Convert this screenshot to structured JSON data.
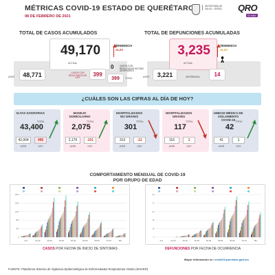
{
  "header": {
    "title": "MÉTRICAS COVID-19 ESTADO DE QUERÉTARO",
    "date": "08 DE FEBRERO DE 2021",
    "gov_text": "SECRETARÍA DE SALUD - SESEQ",
    "logo_main": "QRO",
    "logo_sub": "SI HAY"
  },
  "cases": {
    "title": "TOTAL DE CASOS ACUMULADOS",
    "total": "49,170",
    "total_label": "ACTUAL",
    "trend_label": "TENDENCIA",
    "trend_value": "ALZA",
    "yesterday_label": "AYER",
    "yesterday": "48,771",
    "diff_label": "CASOS CON RESULTADOS DE HOY",
    "diff": "399",
    "prior_label": "CASOS CON RESULTADOS DE DÍAS ANTERIORES",
    "prior": "0",
    "sum_value": "399",
    "sum_label": "TOTAL"
  },
  "deaths": {
    "title": "TOTAL DE DEFUNCIONES ACUMULADAS",
    "total": "3,235",
    "total_label": "ACTUAL",
    "trend_label": "TENDENCIA",
    "trend_value": "ALZA",
    "yesterday_label": "AYER",
    "yesterday": "3,221",
    "diff_label": "DIFERENCIA",
    "diff": "14"
  },
  "banner": {
    "text": "¿CUÁLES SON LAS CIFRAS AL DÍA DE HOY?"
  },
  "metrics": [
    {
      "title": "ALTAS SANITARIAS",
      "total_label": "TOTAL",
      "total": "43,400",
      "yesterday": "42,904",
      "today": "496",
      "yesterday_label": "AYER",
      "today_label": "HOY",
      "trend": "up",
      "today_style": "pink"
    },
    {
      "title": "MANEJO DOMICILIARIO",
      "total_label": "TOTAL",
      "total": "2,075",
      "yesterday": "2,176",
      "today": "-101",
      "yesterday_label": "AYER",
      "today_label": "HOY",
      "trend": "up",
      "today_style": "red"
    },
    {
      "title": "HOSPITALIZADOS NO GRAVES",
      "total_label": "TOTAL",
      "total": "301",
      "yesterday": "313",
      "today": "-12",
      "yesterday_label": "AYER",
      "today_label": "HOY",
      "trend": "down",
      "today_style": "red"
    },
    {
      "title": "HOSPITALIZADOS GRAVES",
      "total_label": "TOTAL",
      "total": "117",
      "yesterday": "116",
      "today": "1",
      "yesterday_label": "AYER",
      "today_label": "HOY",
      "trend": "down",
      "today_style": "red"
    },
    {
      "title": "UNIDAD MÉDICA DE AISLAMIENTO COVID-19",
      "total_label": "TOTAL",
      "total": "42",
      "yesterday": "41",
      "today": "1",
      "yesterday_label": "AYER",
      "today_label": "HOY",
      "trend": "up",
      "today_style": "green"
    }
  ],
  "charts": {
    "title_line1": "COMPORTAMIENTO MENSUAL DE COVID-19",
    "title_line2": "POR GRUPO DE EDAD",
    "left_caption_colored": "CASOS",
    "left_caption_rest": " POR FECHA DE INICIO DE SÍNTOMAS",
    "right_caption_colored": "DEFUNCIONES",
    "right_caption_rest": " POR FECHA DE OCURRENCIA",
    "colors": [
      "#1f4e9a",
      "#c0392b",
      "#7fb04a",
      "#7b4a9a",
      "#2aa7c9",
      "#f08a24",
      "#9fc3e8",
      "#e8a0a8",
      "#c7d98a",
      "#b39ad0",
      "#e74c3c",
      "#5bd6c9"
    ]
  },
  "chart_data": [
    {
      "type": "bar",
      "title": "",
      "categories": [
        "0-9",
        "10-19",
        "20-29",
        "30-39",
        "40-49",
        "50-59",
        "60-69",
        "70-79",
        "80+"
      ],
      "series": [
        {
          "values": [
            20,
            80,
            230,
            260,
            220,
            150,
            90,
            50,
            25
          ]
        },
        {
          "values": [
            30,
            110,
            350,
            380,
            320,
            230,
            140,
            75,
            35
          ]
        },
        {
          "values": [
            45,
            160,
            520,
            560,
            470,
            330,
            200,
            110,
            50
          ]
        },
        {
          "values": [
            60,
            210,
            700,
            740,
            620,
            440,
            270,
            150,
            70
          ]
        },
        {
          "values": [
            70,
            250,
            820,
            860,
            730,
            520,
            320,
            180,
            80
          ]
        },
        {
          "values": [
            80,
            280,
            900,
            940,
            800,
            570,
            350,
            200,
            90
          ]
        },
        {
          "values": [
            90,
            310,
            980,
            1020,
            870,
            620,
            380,
            220,
            100
          ]
        },
        {
          "values": [
            100,
            340,
            1050,
            1100,
            940,
            670,
            410,
            240,
            110
          ]
        },
        {
          "values": [
            110,
            370,
            1150,
            1200,
            1030,
            730,
            450,
            260,
            120
          ]
        },
        {
          "values": [
            130,
            430,
            1350,
            1420,
            1210,
            860,
            530,
            300,
            140
          ]
        },
        {
          "values": [
            160,
            520,
            1650,
            1730,
            1480,
            1050,
            650,
            370,
            170
          ]
        },
        {
          "values": [
            180,
            600,
            1850,
            1950,
            1670,
            1180,
            730,
            420,
            190
          ]
        }
      ],
      "ylim": [
        0,
        2000
      ]
    },
    {
      "type": "bar",
      "title": "",
      "categories": [
        "0-9",
        "10-19",
        "20-29",
        "30-39",
        "40-49",
        "50-59",
        "60-69",
        "70-79",
        "80+"
      ],
      "series": [
        {
          "values": [
            0,
            0,
            1,
            2,
            4,
            8,
            10,
            9,
            6
          ]
        },
        {
          "values": [
            0,
            0,
            1,
            3,
            6,
            12,
            16,
            14,
            10
          ]
        },
        {
          "values": [
            0,
            0,
            2,
            5,
            10,
            20,
            26,
            22,
            15
          ]
        },
        {
          "values": [
            0,
            0,
            2,
            6,
            13,
            26,
            34,
            30,
            20
          ]
        },
        {
          "values": [
            0,
            0,
            3,
            7,
            15,
            30,
            40,
            35,
            24
          ]
        },
        {
          "values": [
            0,
            0,
            3,
            8,
            17,
            33,
            44,
            38,
            26
          ]
        },
        {
          "values": [
            0,
            0,
            3,
            8,
            18,
            35,
            47,
            41,
            28
          ]
        },
        {
          "values": [
            0,
            0,
            4,
            9,
            20,
            38,
            50,
            44,
            30
          ]
        },
        {
          "values": [
            0,
            0,
            4,
            10,
            22,
            42,
            55,
            48,
            33
          ]
        },
        {
          "values": [
            0,
            1,
            5,
            12,
            26,
            50,
            66,
            58,
            40
          ]
        },
        {
          "values": [
            0,
            1,
            6,
            14,
            30,
            58,
            78,
            68,
            47
          ]
        },
        {
          "values": [
            0,
            1,
            6,
            15,
            33,
            64,
            86,
            75,
            52
          ]
        }
      ],
      "ylim": [
        0,
        90
      ]
    }
  ],
  "footer": {
    "more_label": "Mayor información en:",
    "more_url": "covid19.queretaro.gob.mx",
    "source": "FUENTE: Plataforma Sistema de Vigilancia Epidemiológica de Enfermedades Respiratorias Virales (SISVER)"
  }
}
